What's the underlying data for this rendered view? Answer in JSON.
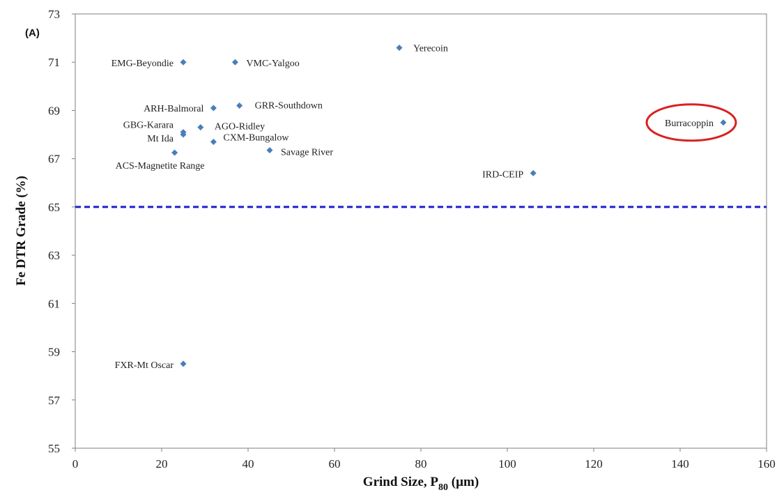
{
  "chart_data": {
    "type": "scatter",
    "panel_label": "(A)",
    "xlabel": "Grind Size, P",
    "xlabel_sub": "80",
    "xlabel_unit": " (µm)",
    "ylabel": "Fe DTR Grade (%)",
    "xlim": [
      0,
      160
    ],
    "ylim": [
      55,
      73
    ],
    "x_ticks": [
      0,
      20,
      40,
      60,
      80,
      100,
      120,
      140,
      160
    ],
    "y_ticks": [
      55,
      57,
      59,
      61,
      63,
      65,
      67,
      69,
      71,
      73
    ],
    "grid": false,
    "marker_color": "#4A7EBB",
    "reference_line": {
      "y": 65,
      "color": "#1F1FCC",
      "style": "dashed"
    },
    "highlight": {
      "label": "Burracoppin",
      "color": "#D92121",
      "shape": "ellipse"
    },
    "points": [
      {
        "label": "Yerecoin",
        "x": 75,
        "y": 71.6
      },
      {
        "label": "EMG-Beyondie",
        "x": 25,
        "y": 71.0
      },
      {
        "label": "VMC-Yalgoo",
        "x": 37,
        "y": 71.0
      },
      {
        "label": "ARH-Balmoral",
        "x": 32,
        "y": 69.1
      },
      {
        "label": "GRR-Southdown",
        "x": 38,
        "y": 69.2
      },
      {
        "label": "GBG-Karara",
        "x": 25,
        "y": 68.1
      },
      {
        "label": "AGO-Ridley",
        "x": 29,
        "y": 68.3
      },
      {
        "label": "Mt Ida",
        "x": 25,
        "y": 68.0
      },
      {
        "label": "CXM-Bungalow",
        "x": 32,
        "y": 67.7
      },
      {
        "label": "Savage River",
        "x": 45,
        "y": 67.35
      },
      {
        "label": "ACS-Magnetite Range",
        "x": 23,
        "y": 67.25
      },
      {
        "label": "IRD-CEIP",
        "x": 106,
        "y": 66.4
      },
      {
        "label": "Burracoppin",
        "x": 150,
        "y": 68.5
      },
      {
        "label": "FXR-Mt Oscar",
        "x": 25,
        "y": 58.5
      }
    ]
  }
}
